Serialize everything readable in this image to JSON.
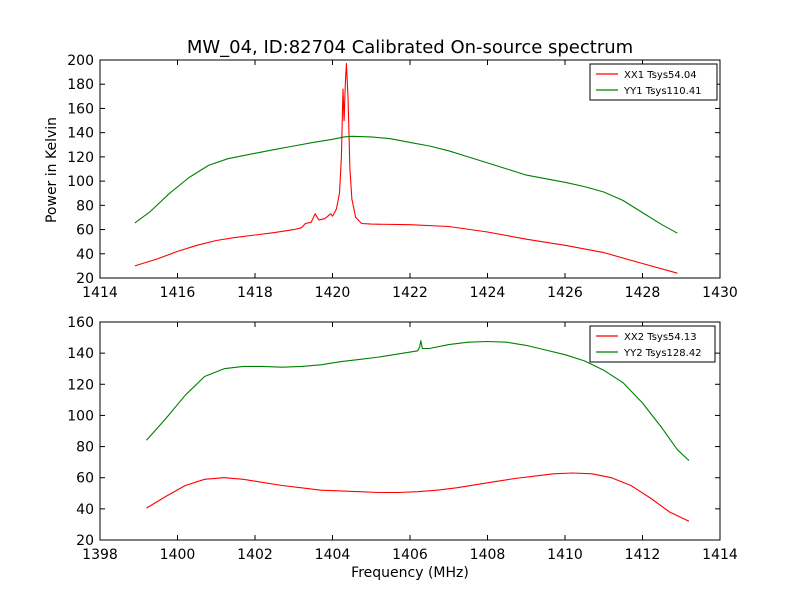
{
  "figure": {
    "title": "MW_04, ID:82704 Calibrated On-source spectrum",
    "ylabel": "Power in Kelvin",
    "xlabel": "Frequency (MHz)"
  },
  "chart_data": [
    {
      "type": "line",
      "title": "MW_04, ID:82704 Calibrated On-source spectrum",
      "ylabel": "Power in Kelvin",
      "xlabel": "",
      "xlim": [
        1414,
        1430
      ],
      "ylim": [
        20,
        200
      ],
      "xticks": [
        1414,
        1416,
        1418,
        1420,
        1422,
        1424,
        1426,
        1428,
        1430
      ],
      "yticks": [
        20,
        40,
        60,
        80,
        100,
        120,
        140,
        160,
        180,
        200
      ],
      "legend": "top-right",
      "grid": false,
      "series": [
        {
          "name": "XX1 Tsys54.04",
          "color": "#ff0000",
          "points": [
            [
              1414.9,
              30
            ],
            [
              1415.5,
              36
            ],
            [
              1416,
              42
            ],
            [
              1416.5,
              47
            ],
            [
              1417,
              51
            ],
            [
              1417.5,
              53.5
            ],
            [
              1418,
              55.5
            ],
            [
              1418.5,
              57.5
            ],
            [
              1419,
              60
            ],
            [
              1419.2,
              61.5
            ],
            [
              1419.3,
              65
            ],
            [
              1419.45,
              66
            ],
            [
              1419.55,
              73
            ],
            [
              1419.65,
              68
            ],
            [
              1419.8,
              69
            ],
            [
              1419.95,
              73
            ],
            [
              1420.0,
              71
            ],
            [
              1420.1,
              77
            ],
            [
              1420.18,
              90
            ],
            [
              1420.23,
              120
            ],
            [
              1420.27,
              176
            ],
            [
              1420.3,
              150
            ],
            [
              1420.33,
              180
            ],
            [
              1420.36,
              197
            ],
            [
              1420.4,
              170
            ],
            [
              1420.45,
              110
            ],
            [
              1420.5,
              85
            ],
            [
              1420.6,
              70
            ],
            [
              1420.75,
              65
            ],
            [
              1421,
              64.5
            ],
            [
              1422,
              64
            ],
            [
              1423,
              62.5
            ],
            [
              1424,
              58
            ],
            [
              1425,
              52
            ],
            [
              1426,
              47
            ],
            [
              1427,
              41
            ],
            [
              1428,
              32
            ],
            [
              1428.9,
              24
            ]
          ]
        },
        {
          "name": "YY1 Tsys110.41",
          "color": "#008000",
          "points": [
            [
              1414.9,
              65.5
            ],
            [
              1415.3,
              75
            ],
            [
              1415.8,
              90
            ],
            [
              1416.3,
              103
            ],
            [
              1416.8,
              113
            ],
            [
              1417.3,
              118.5
            ],
            [
              1418,
              123
            ],
            [
              1418.5,
              126
            ],
            [
              1419,
              129
            ],
            [
              1419.5,
              132
            ],
            [
              1420,
              134.5
            ],
            [
              1420.3,
              136.5
            ],
            [
              1420.5,
              137
            ],
            [
              1421,
              136.5
            ],
            [
              1421.5,
              135
            ],
            [
              1422,
              132
            ],
            [
              1422.5,
              129
            ],
            [
              1423,
              125
            ],
            [
              1423.5,
              120
            ],
            [
              1424,
              115
            ],
            [
              1424.5,
              110
            ],
            [
              1425,
              105
            ],
            [
              1425.5,
              102
            ],
            [
              1426,
              99
            ],
            [
              1426.5,
              95.5
            ],
            [
              1427,
              91
            ],
            [
              1427.5,
              84
            ],
            [
              1428,
              74
            ],
            [
              1428.5,
              64
            ],
            [
              1428.9,
              57
            ]
          ]
        }
      ]
    },
    {
      "type": "line",
      "title": "",
      "xlabel": "Frequency (MHz)",
      "ylabel": "",
      "xlim": [
        1398,
        1414
      ],
      "ylim": [
        20,
        160
      ],
      "xticks": [
        1398,
        1400,
        1402,
        1404,
        1406,
        1408,
        1410,
        1412,
        1414
      ],
      "yticks": [
        20,
        40,
        60,
        80,
        100,
        120,
        140,
        160
      ],
      "legend": "top-right",
      "grid": false,
      "series": [
        {
          "name": "XX2 Tsys54.13",
          "color": "#ff0000",
          "points": [
            [
              1399.2,
              40.5
            ],
            [
              1399.7,
              48
            ],
            [
              1400.2,
              55
            ],
            [
              1400.7,
              59
            ],
            [
              1401.2,
              60
            ],
            [
              1401.7,
              59
            ],
            [
              1402.2,
              57
            ],
            [
              1402.7,
              55
            ],
            [
              1403.2,
              53.5
            ],
            [
              1403.7,
              52
            ],
            [
              1404.2,
              51.5
            ],
            [
              1404.7,
              51
            ],
            [
              1405.2,
              50.5
            ],
            [
              1405.7,
              50.5
            ],
            [
              1406.2,
              51
            ],
            [
              1406.7,
              52
            ],
            [
              1407.2,
              53.5
            ],
            [
              1407.7,
              55.5
            ],
            [
              1408.2,
              57.5
            ],
            [
              1408.7,
              59.5
            ],
            [
              1409.2,
              61
            ],
            [
              1409.7,
              62.5
            ],
            [
              1410.2,
              63
            ],
            [
              1410.7,
              62.5
            ],
            [
              1411.2,
              60
            ],
            [
              1411.7,
              55
            ],
            [
              1412.2,
              47
            ],
            [
              1412.7,
              38
            ],
            [
              1413.2,
              32
            ]
          ]
        },
        {
          "name": "YY2 Tsys128.42",
          "color": "#008000",
          "points": [
            [
              1399.2,
              84
            ],
            [
              1399.7,
              98
            ],
            [
              1400.2,
              113
            ],
            [
              1400.7,
              125
            ],
            [
              1401.2,
              130
            ],
            [
              1401.7,
              131.5
            ],
            [
              1402.2,
              131.5
            ],
            [
              1402.7,
              131
            ],
            [
              1403.2,
              131.5
            ],
            [
              1403.7,
              132.5
            ],
            [
              1404.2,
              134.5
            ],
            [
              1404.7,
              136
            ],
            [
              1405.2,
              137.5
            ],
            [
              1405.7,
              139.5
            ],
            [
              1406.2,
              141.5
            ],
            [
              1406.25,
              144
            ],
            [
              1406.28,
              148
            ],
            [
              1406.32,
              143
            ],
            [
              1406.5,
              143
            ],
            [
              1407,
              145.5
            ],
            [
              1407.5,
              147
            ],
            [
              1408,
              147.5
            ],
            [
              1408.5,
              147
            ],
            [
              1409,
              145
            ],
            [
              1409.5,
              142
            ],
            [
              1410,
              139
            ],
            [
              1410.5,
              135
            ],
            [
              1411,
              129
            ],
            [
              1411.5,
              121
            ],
            [
              1412,
              108
            ],
            [
              1412.5,
              92
            ],
            [
              1412.9,
              78
            ],
            [
              1413.2,
              71
            ]
          ]
        }
      ]
    }
  ]
}
